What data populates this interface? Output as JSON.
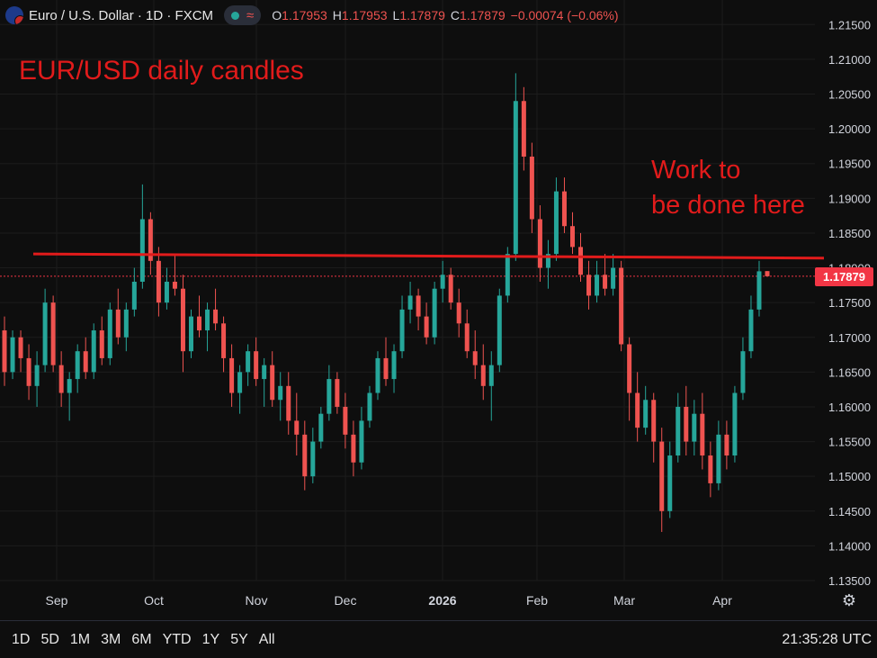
{
  "header": {
    "symbol_title": "Euro / U.S. Dollar · 1D · FXCM",
    "flag_icon": "eur-usd-flag-icon",
    "ohlc": [
      {
        "key": "O",
        "value": "1.17953"
      },
      {
        "key": "H",
        "value": "1.17953"
      },
      {
        "key": "L",
        "value": "1.17879"
      },
      {
        "key": "C",
        "value": "1.17879"
      }
    ],
    "change": "−0.00074 (−0.06%)"
  },
  "annotations": {
    "title": "EUR/USD daily candles",
    "note_line1": "Work to",
    "note_line2": "be done here"
  },
  "price_axis": {
    "current_price": "1.17879",
    "labels": [
      "1.21500",
      "1.21000",
      "1.20500",
      "1.20000",
      "1.19500",
      "1.19000",
      "1.18500",
      "1.18000",
      "1.17500",
      "1.17000",
      "1.16500",
      "1.16000",
      "1.15500",
      "1.15000",
      "1.14500",
      "1.14000",
      "1.13500"
    ]
  },
  "time_axis": {
    "labels": [
      "Sep",
      "Oct",
      "Nov",
      "Dec",
      "2026",
      "Feb",
      "Mar",
      "Apr"
    ]
  },
  "toolbar": {
    "ranges": [
      "1D",
      "5D",
      "1M",
      "3M",
      "6M",
      "YTD",
      "1Y",
      "5Y",
      "All"
    ],
    "clock": "21:35:28 UTC",
    "settings_icon": "gear-icon"
  },
  "colors": {
    "up": "#26a69a",
    "down": "#ef5350",
    "annotation": "#e11b1b",
    "background": "#0e0e0e"
  },
  "chart_data": {
    "type": "candlestick",
    "title": "EUR/USD daily candles",
    "ylim": [
      1.135,
      1.2175
    ],
    "x_ticks": [
      "Sep",
      "Oct",
      "Nov",
      "Dec",
      "2026",
      "Feb",
      "Mar",
      "Apr"
    ],
    "resistance_line": [
      1.182,
      1.1814
    ],
    "last_price": 1.17879,
    "candles": [
      [
        1.171,
        1.173,
        1.163,
        1.165
      ],
      [
        1.165,
        1.171,
        1.164,
        1.17
      ],
      [
        1.17,
        1.171,
        1.165,
        1.167
      ],
      [
        1.167,
        1.169,
        1.161,
        1.163
      ],
      [
        1.163,
        1.168,
        1.16,
        1.166
      ],
      [
        1.166,
        1.177,
        1.165,
        1.175
      ],
      [
        1.175,
        1.176,
        1.165,
        1.166
      ],
      [
        1.166,
        1.168,
        1.16,
        1.162
      ],
      [
        1.162,
        1.165,
        1.158,
        1.164
      ],
      [
        1.164,
        1.169,
        1.162,
        1.168
      ],
      [
        1.168,
        1.17,
        1.164,
        1.165
      ],
      [
        1.165,
        1.172,
        1.164,
        1.171
      ],
      [
        1.171,
        1.173,
        1.166,
        1.167
      ],
      [
        1.167,
        1.175,
        1.166,
        1.174
      ],
      [
        1.174,
        1.177,
        1.169,
        1.17
      ],
      [
        1.17,
        1.175,
        1.168,
        1.174
      ],
      [
        1.174,
        1.18,
        1.173,
        1.178
      ],
      [
        1.178,
        1.192,
        1.177,
        1.187
      ],
      [
        1.187,
        1.188,
        1.179,
        1.181
      ],
      [
        1.181,
        1.183,
        1.173,
        1.175
      ],
      [
        1.175,
        1.18,
        1.174,
        1.178
      ],
      [
        1.178,
        1.182,
        1.176,
        1.177
      ],
      [
        1.177,
        1.179,
        1.165,
        1.168
      ],
      [
        1.168,
        1.174,
        1.167,
        1.173
      ],
      [
        1.173,
        1.176,
        1.17,
        1.171
      ],
      [
        1.171,
        1.175,
        1.168,
        1.174
      ],
      [
        1.174,
        1.177,
        1.171,
        1.172
      ],
      [
        1.172,
        1.173,
        1.165,
        1.167
      ],
      [
        1.167,
        1.169,
        1.16,
        1.162
      ],
      [
        1.162,
        1.166,
        1.159,
        1.165
      ],
      [
        1.165,
        1.169,
        1.163,
        1.168
      ],
      [
        1.168,
        1.17,
        1.163,
        1.164
      ],
      [
        1.164,
        1.167,
        1.16,
        1.166
      ],
      [
        1.166,
        1.168,
        1.16,
        1.161
      ],
      [
        1.161,
        1.165,
        1.158,
        1.163
      ],
      [
        1.163,
        1.165,
        1.156,
        1.158
      ],
      [
        1.158,
        1.162,
        1.153,
        1.156
      ],
      [
        1.156,
        1.158,
        1.148,
        1.15
      ],
      [
        1.15,
        1.157,
        1.149,
        1.155
      ],
      [
        1.155,
        1.16,
        1.154,
        1.159
      ],
      [
        1.159,
        1.166,
        1.158,
        1.164
      ],
      [
        1.164,
        1.165,
        1.159,
        1.16
      ],
      [
        1.16,
        1.162,
        1.154,
        1.156
      ],
      [
        1.156,
        1.158,
        1.15,
        1.152
      ],
      [
        1.152,
        1.16,
        1.151,
        1.158
      ],
      [
        1.158,
        1.163,
        1.157,
        1.162
      ],
      [
        1.162,
        1.168,
        1.161,
        1.167
      ],
      [
        1.167,
        1.17,
        1.163,
        1.164
      ],
      [
        1.164,
        1.169,
        1.162,
        1.168
      ],
      [
        1.168,
        1.176,
        1.167,
        1.174
      ],
      [
        1.174,
        1.178,
        1.172,
        1.176
      ],
      [
        1.176,
        1.177,
        1.171,
        1.173
      ],
      [
        1.173,
        1.175,
        1.169,
        1.17
      ],
      [
        1.17,
        1.178,
        1.169,
        1.177
      ],
      [
        1.177,
        1.181,
        1.175,
        1.179
      ],
      [
        1.179,
        1.18,
        1.174,
        1.175
      ],
      [
        1.175,
        1.177,
        1.17,
        1.172
      ],
      [
        1.172,
        1.174,
        1.167,
        1.168
      ],
      [
        1.168,
        1.171,
        1.164,
        1.166
      ],
      [
        1.166,
        1.169,
        1.161,
        1.163
      ],
      [
        1.163,
        1.168,
        1.158,
        1.166
      ],
      [
        1.166,
        1.177,
        1.165,
        1.176
      ],
      [
        1.176,
        1.183,
        1.175,
        1.182
      ],
      [
        1.182,
        1.208,
        1.181,
        1.204
      ],
      [
        1.204,
        1.206,
        1.194,
        1.196
      ],
      [
        1.196,
        1.198,
        1.185,
        1.187
      ],
      [
        1.187,
        1.189,
        1.178,
        1.18
      ],
      [
        1.18,
        1.184,
        1.177,
        1.182
      ],
      [
        1.182,
        1.193,
        1.181,
        1.191
      ],
      [
        1.191,
        1.193,
        1.185,
        1.186
      ],
      [
        1.186,
        1.188,
        1.182,
        1.183
      ],
      [
        1.183,
        1.185,
        1.178,
        1.179
      ],
      [
        1.179,
        1.181,
        1.174,
        1.176
      ],
      [
        1.176,
        1.181,
        1.175,
        1.179
      ],
      [
        1.179,
        1.182,
        1.176,
        1.177
      ],
      [
        1.177,
        1.182,
        1.176,
        1.18
      ],
      [
        1.18,
        1.181,
        1.168,
        1.169
      ],
      [
        1.169,
        1.17,
        1.158,
        1.162
      ],
      [
        1.162,
        1.165,
        1.155,
        1.157
      ],
      [
        1.157,
        1.163,
        1.156,
        1.161
      ],
      [
        1.161,
        1.162,
        1.152,
        1.155
      ],
      [
        1.155,
        1.157,
        1.142,
        1.145
      ],
      [
        1.145,
        1.155,
        1.144,
        1.153
      ],
      [
        1.153,
        1.162,
        1.152,
        1.16
      ],
      [
        1.16,
        1.163,
        1.153,
        1.155
      ],
      [
        1.155,
        1.161,
        1.153,
        1.159
      ],
      [
        1.159,
        1.162,
        1.151,
        1.153
      ],
      [
        1.153,
        1.155,
        1.147,
        1.149
      ],
      [
        1.149,
        1.158,
        1.148,
        1.156
      ],
      [
        1.156,
        1.158,
        1.151,
        1.153
      ],
      [
        1.153,
        1.163,
        1.152,
        1.162
      ],
      [
        1.162,
        1.17,
        1.161,
        1.168
      ],
      [
        1.168,
        1.176,
        1.167,
        1.174
      ],
      [
        1.174,
        1.181,
        1.173,
        1.1795
      ],
      [
        1.17953,
        1.17953,
        1.17879,
        1.17879
      ]
    ]
  }
}
